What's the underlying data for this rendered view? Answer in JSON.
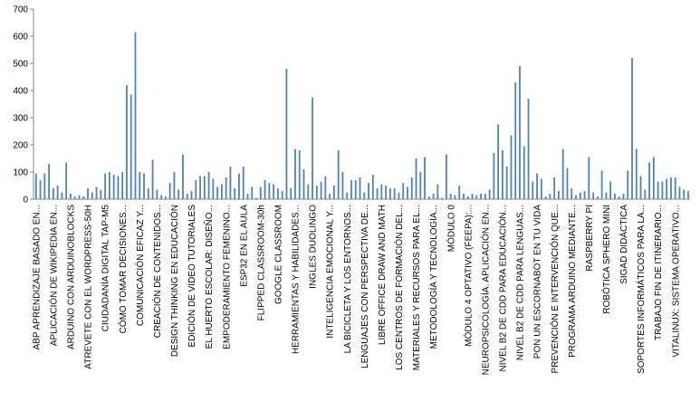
{
  "chart_data": {
    "type": "bar",
    "categories": [
      "ABP APRENDIZAJE BASADO EN...",
      null,
      null,
      null,
      "APLICACIÓN DE WIKIPEDIA EN...",
      null,
      null,
      null,
      "ARDUINO CON ARDUINOBLOCKS",
      null,
      null,
      null,
      "ATREVETE CON EL WORDPRESS-50H",
      null,
      null,
      null,
      "CIUDADANÍA DIGITAL TAP-M5",
      null,
      null,
      null,
      "CÓMO TOMAR DECISIONES...",
      null,
      null,
      null,
      "COMUNICACIÓN EFICAZ Y...",
      null,
      null,
      null,
      "CREACIÓN DE CONTENIDOS...",
      null,
      null,
      null,
      "DESIGN THINKING EN EDUCACIÓN",
      null,
      null,
      null,
      "EDICIÓN DE VÍDEO TUTORIALES",
      null,
      null,
      null,
      "EL HUERTO ESCOLAR: DISEÑO...",
      null,
      null,
      null,
      "EMPODERAMIENTO FEMENINO...",
      null,
      null,
      null,
      "ESP32 EN EL AULA",
      null,
      null,
      null,
      "FLIPPED CLASSROOM-30h",
      null,
      null,
      null,
      "GOOGLE CLASSROOM",
      null,
      null,
      null,
      "HERRAMIENTAS Y HABILIDADES...",
      null,
      null,
      null,
      "INGLES DUOLINGO",
      null,
      null,
      null,
      "INTELIGENCIA EMOCIONAL Y...",
      null,
      null,
      null,
      "LA BICICLETA Y LOS ENTORNOS...",
      null,
      null,
      null,
      "LENGUAJES CON PERSPECTIVA DE...",
      null,
      null,
      null,
      "LIBRE OFFICE DRAW AND MATH",
      null,
      null,
      null,
      "LOS CENTROS DE FORMACIÓN DEL...",
      null,
      null,
      null,
      "MATERIALES Y RECURSOS PARA EL...",
      null,
      null,
      null,
      "METODOLOGÍA Y TECNOLOGÍA...",
      null,
      null,
      null,
      "MÓDULO 0",
      null,
      null,
      null,
      "MÓDULO 4 OPTATIVO (FEEPA):...",
      null,
      null,
      null,
      "NEUROPSICOLOGÍA. APLICACIÓN EN...",
      null,
      null,
      null,
      "NIVEL B2 DE CDD PARA EDUCACIÓN...",
      null,
      null,
      null,
      "NIVEL B2 DE CDD PARA LENGUAS...",
      null,
      null,
      null,
      "PON UN ESCORNABOT EN TU VIDA",
      null,
      null,
      null,
      "PREVENCIÓN E INTERVENCIÓN QUE...",
      null,
      null,
      null,
      "PROGRAMA ARDUINO MEDIANTE...",
      null,
      null,
      null,
      "RASPBERRY PI",
      null,
      null,
      null,
      "ROBÓTICA SPHERO MINI",
      null,
      null,
      null,
      "SIGAD DIDÁCTICA",
      null,
      null,
      null,
      "SOPORTES INFORMÁTICOS PARA LA...",
      null,
      null,
      null,
      "TRABAJO FIN DE ITINERARIO...",
      null,
      null,
      null,
      "VITALINUX: SISTEMA OPERATIVO...",
      null,
      null,
      null
    ],
    "values": [
      95,
      70,
      95,
      130,
      40,
      50,
      25,
      135,
      20,
      10,
      15,
      10,
      40,
      25,
      45,
      35,
      95,
      100,
      90,
      85,
      100,
      420,
      385,
      615,
      100,
      95,
      40,
      145,
      35,
      15,
      10,
      60,
      100,
      35,
      165,
      20,
      30,
      70,
      85,
      85,
      100,
      75,
      45,
      55,
      80,
      120,
      40,
      95,
      120,
      20,
      45,
      5,
      45,
      70,
      60,
      55,
      40,
      30,
      480,
      40,
      185,
      180,
      110,
      55,
      375,
      50,
      65,
      85,
      20,
      50,
      180,
      100,
      25,
      70,
      70,
      80,
      25,
      60,
      90,
      40,
      55,
      50,
      40,
      40,
      25,
      60,
      45,
      80,
      150,
      100,
      155,
      10,
      20,
      55,
      5,
      165,
      20,
      15,
      50,
      20,
      10,
      20,
      15,
      20,
      20,
      35,
      170,
      275,
      180,
      120,
      235,
      430,
      490,
      195,
      370,
      65,
      95,
      75,
      10,
      20,
      80,
      30,
      185,
      115,
      40,
      15,
      25,
      30,
      155,
      25,
      10,
      105,
      25,
      65,
      20,
      10,
      20,
      105,
      520,
      185,
      85,
      35,
      135,
      155,
      65,
      65,
      75,
      80,
      80,
      45,
      35,
      30
    ],
    "color": "#4f81bd",
    "ylim": [
      0,
      700
    ],
    "yticks": [
      0,
      100,
      200,
      300,
      400,
      500,
      600,
      700
    ]
  }
}
